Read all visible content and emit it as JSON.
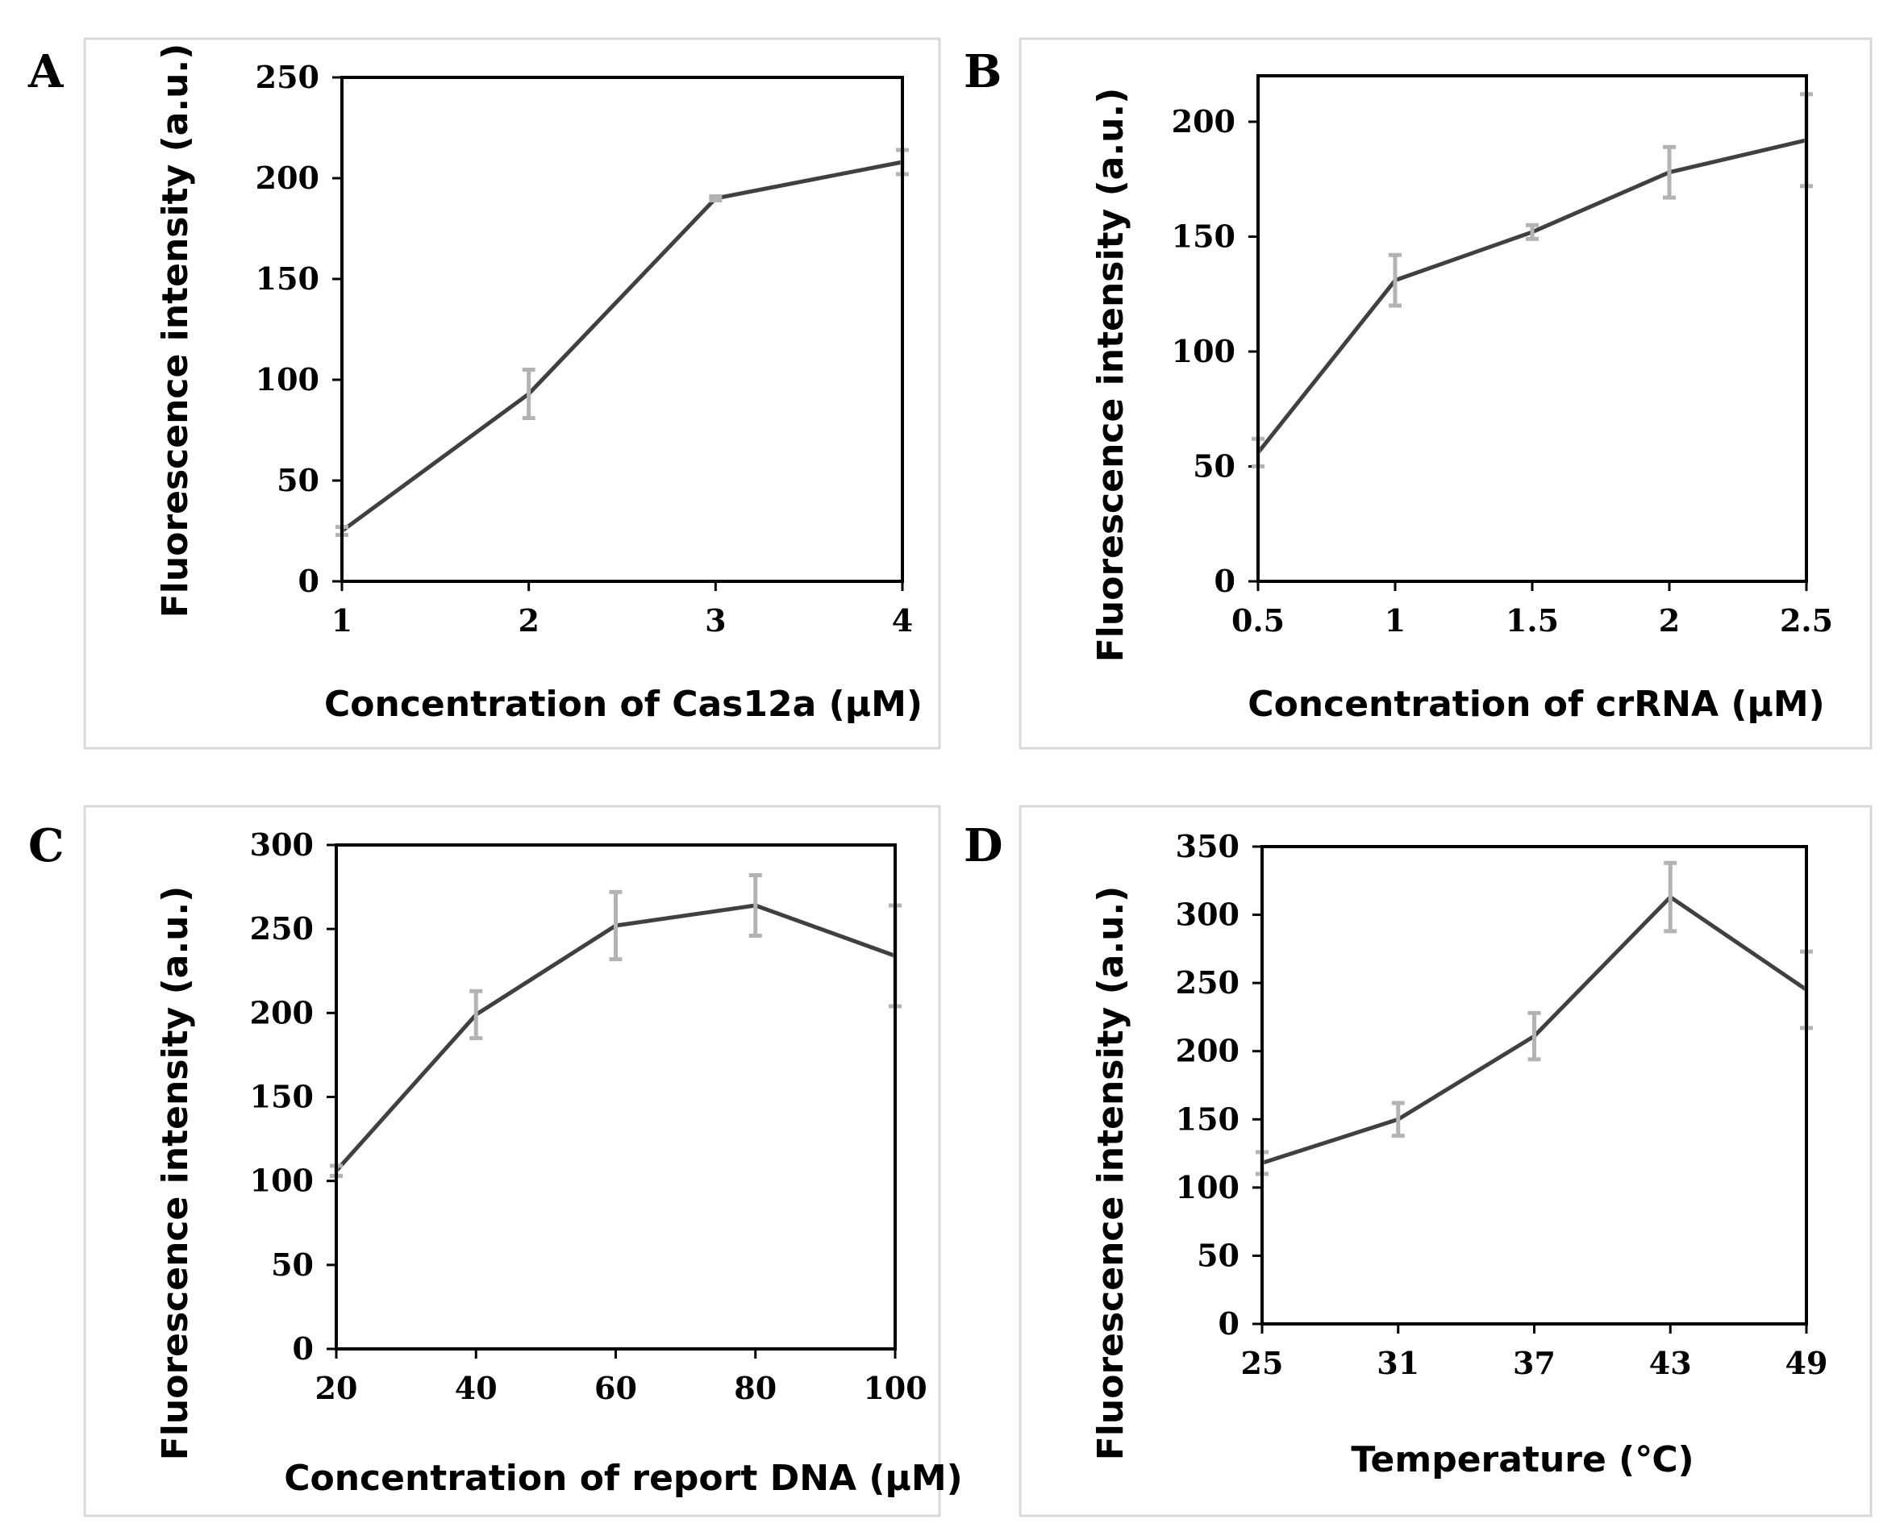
{
  "chart_data": [
    {
      "type": "line",
      "panel_label": "A",
      "xlabel": "Concentration of Cas12a (μM)",
      "ylabel": "Fluorescence intensity (a.u.)",
      "x": [
        1,
        2,
        3,
        4
      ],
      "x_ticks": [
        1,
        2,
        3,
        4
      ],
      "x_tick_labels": [
        "1",
        "2",
        "3",
        "4"
      ],
      "xlim": [
        1,
        4
      ],
      "ylim": [
        0,
        250
      ],
      "y_ticks": [
        0,
        50,
        100,
        150,
        200,
        250
      ],
      "y_tick_labels": [
        "0",
        "50",
        "100",
        "150",
        "200",
        "250"
      ],
      "series": [
        {
          "name": "Fluorescence",
          "values": [
            25,
            93,
            190,
            208
          ],
          "errors": [
            2,
            12,
            1,
            6
          ]
        }
      ],
      "grid": false
    },
    {
      "type": "line",
      "panel_label": "B",
      "xlabel": "Concentration of crRNA (μM)",
      "ylabel": "Fluorescence intensity (a.u.)",
      "x": [
        0.5,
        1,
        1.5,
        2,
        2.5
      ],
      "x_ticks": [
        0.5,
        1,
        1.5,
        2,
        2.5
      ],
      "x_tick_labels": [
        "0.5",
        "1",
        "1.5",
        "2",
        "2.5"
      ],
      "xlim": [
        0.5,
        2.5
      ],
      "ylim": [
        0,
        220
      ],
      "y_ticks": [
        0,
        50,
        100,
        150,
        200
      ],
      "y_tick_labels": [
        "0",
        "50",
        "100",
        "150",
        "200"
      ],
      "series": [
        {
          "name": "Fluorescence",
          "values": [
            56,
            131,
            152,
            178,
            192
          ],
          "errors": [
            6,
            11,
            3,
            11,
            20
          ]
        }
      ],
      "grid": false
    },
    {
      "type": "line",
      "panel_label": "C",
      "xlabel": "Concentration of report DNA (μM)",
      "ylabel": "Fluorescence intensity (a.u.)",
      "x": [
        20,
        40,
        60,
        80,
        100
      ],
      "x_ticks": [
        20,
        40,
        60,
        80,
        100
      ],
      "x_tick_labels": [
        "20",
        "40",
        "60",
        "80",
        "100"
      ],
      "xlim": [
        20,
        100
      ],
      "ylim": [
        0,
        300
      ],
      "y_ticks": [
        0,
        50,
        100,
        150,
        200,
        250,
        300
      ],
      "y_tick_labels": [
        "0",
        "50",
        "100",
        "150",
        "200",
        "250",
        "300"
      ],
      "series": [
        {
          "name": "Fluorescence",
          "values": [
            106,
            199,
            252,
            264,
            234
          ],
          "errors": [
            3,
            14,
            20,
            18,
            30
          ]
        }
      ],
      "grid": false
    },
    {
      "type": "line",
      "panel_label": "D",
      "xlabel": "Temperature (℃)",
      "ylabel": "Fluorescence intensity (a.u.)",
      "x": [
        25,
        31,
        37,
        43,
        49
      ],
      "x_ticks": [
        25,
        31,
        37,
        43,
        49
      ],
      "x_tick_labels": [
        "25",
        "31",
        "37",
        "43",
        "49"
      ],
      "xlim": [
        25,
        49
      ],
      "ylim": [
        0,
        350
      ],
      "y_ticks": [
        0,
        50,
        100,
        150,
        200,
        250,
        300,
        350
      ],
      "y_tick_labels": [
        "0",
        "50",
        "100",
        "150",
        "200",
        "250",
        "300",
        "350"
      ],
      "series": [
        {
          "name": "Fluorescence",
          "values": [
            118,
            150,
            211,
            313,
            245
          ],
          "errors": [
            8,
            12,
            17,
            25,
            28
          ]
        }
      ],
      "grid": false
    }
  ]
}
